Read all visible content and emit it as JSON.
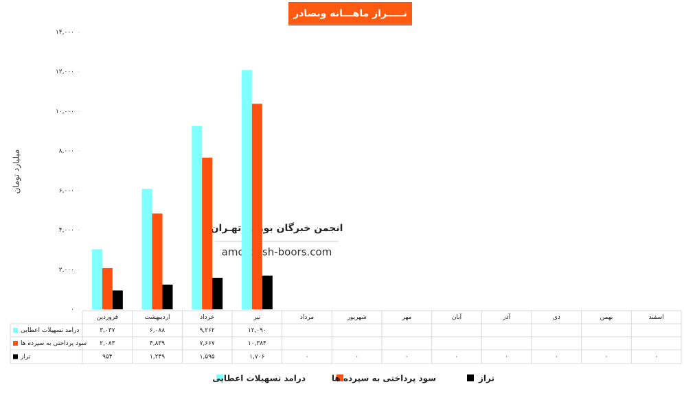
{
  "chart_data": {
    "type": "bar",
    "title": "تـــــراز ماهـــانه وبصادر",
    "y_label": "میلیارد تومان",
    "watermark": {
      "title": "انجمن خبرگان بورس تهـران",
      "site": "amoozesh-boors.com"
    },
    "categories": [
      "فروردین",
      "اردیبهشت",
      "خرداد",
      "تیر",
      "مرداد",
      "شهریور",
      "مهر",
      "آبان",
      "آذر",
      "دی",
      "بهمن",
      "اسفند"
    ],
    "series": [
      {
        "name": "درامد تسهیلات اعطایی",
        "color": "#80ffff",
        "values": [
          3037,
          6088,
          9262,
          12090,
          null,
          null,
          null,
          null,
          null,
          null,
          null,
          null
        ],
        "value_labels": [
          "۳,۰۳۷",
          "۶,۰۸۸",
          "۹,۲۶۲",
          "۱۲,۰۹۰",
          null,
          null,
          null,
          null,
          null,
          null,
          null,
          null
        ]
      },
      {
        "name": "سود پرداختی به سپرده ها",
        "color": "#ff5010",
        "values": [
          2083,
          4839,
          7667,
          10384,
          null,
          null,
          null,
          null,
          null,
          null,
          null,
          null
        ],
        "value_labels": [
          "۲,۰۸۳",
          "۴,۸۳۹",
          "۷,۶۶۷",
          "۱۰,۳۸۴",
          null,
          null,
          null,
          null,
          null,
          null,
          null,
          null
        ]
      },
      {
        "name": "تراز",
        "color": "#000000",
        "values": [
          954,
          1249,
          1595,
          1706,
          0,
          0,
          0,
          0,
          0,
          0,
          0,
          0
        ],
        "value_labels": [
          "۹۵۴",
          "۱,۲۴۹",
          "۱,۵۹۵",
          "۱,۷۰۶",
          "۰",
          "۰",
          "۰",
          "۰",
          "۰",
          "۰",
          "۰",
          "۰"
        ]
      }
    ],
    "ylim": [
      0,
      14000
    ],
    "yticks": [
      {
        "value": 0,
        "label": "۰"
      },
      {
        "value": 2000,
        "label": "۲,۰۰۰"
      },
      {
        "value": 4000,
        "label": "۴,۰۰۰"
      },
      {
        "value": 6000,
        "label": "۶,۰۰۰"
      },
      {
        "value": 8000,
        "label": "۸,۰۰۰"
      },
      {
        "value": 10000,
        "label": "۱۰,۰۰۰"
      },
      {
        "value": 12000,
        "label": "۱۲,۰۰۰"
      },
      {
        "value": 14000,
        "label": "۱۴,۰۰۰"
      }
    ],
    "grid": false,
    "legend": "bottom"
  }
}
